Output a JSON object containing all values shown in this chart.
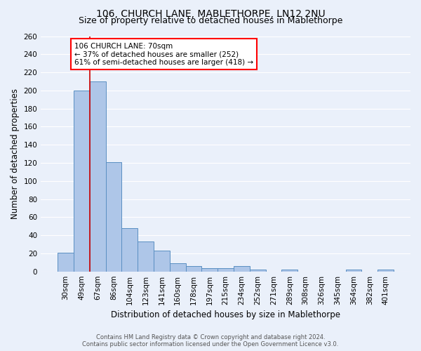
{
  "title": "106, CHURCH LANE, MABLETHORPE, LN12 2NU",
  "subtitle": "Size of property relative to detached houses in Mablethorpe",
  "xlabel": "Distribution of detached houses by size in Mablethorpe",
  "ylabel": "Number of detached properties",
  "footer_line1": "Contains HM Land Registry data © Crown copyright and database right 2024.",
  "footer_line2": "Contains public sector information licensed under the Open Government Licence v3.0.",
  "categories": [
    "30sqm",
    "49sqm",
    "67sqm",
    "86sqm",
    "104sqm",
    "123sqm",
    "141sqm",
    "160sqm",
    "178sqm",
    "197sqm",
    "215sqm",
    "234sqm",
    "252sqm",
    "271sqm",
    "289sqm",
    "308sqm",
    "326sqm",
    "345sqm",
    "364sqm",
    "382sqm",
    "401sqm"
  ],
  "values": [
    21,
    200,
    210,
    121,
    48,
    33,
    23,
    9,
    6,
    4,
    4,
    6,
    2,
    0,
    2,
    0,
    0,
    0,
    2,
    0,
    2
  ],
  "bar_color": "#aec6e8",
  "bar_edge_color": "#5a8fc2",
  "red_line_index": 2,
  "annotation_text": "106 CHURCH LANE: 70sqm\n← 37% of detached houses are smaller (252)\n61% of semi-detached houses are larger (418) →",
  "annotation_box_color": "white",
  "annotation_box_edge_color": "red",
  "red_line_color": "#cc0000",
  "ylim": [
    0,
    260
  ],
  "yticks": [
    0,
    20,
    40,
    60,
    80,
    100,
    120,
    140,
    160,
    180,
    200,
    220,
    240,
    260
  ],
  "background_color": "#eaf0fa",
  "grid_color": "white",
  "title_fontsize": 10,
  "subtitle_fontsize": 9,
  "axis_label_fontsize": 8.5,
  "tick_fontsize": 7.5,
  "annotation_fontsize": 7.5,
  "footer_fontsize": 6
}
